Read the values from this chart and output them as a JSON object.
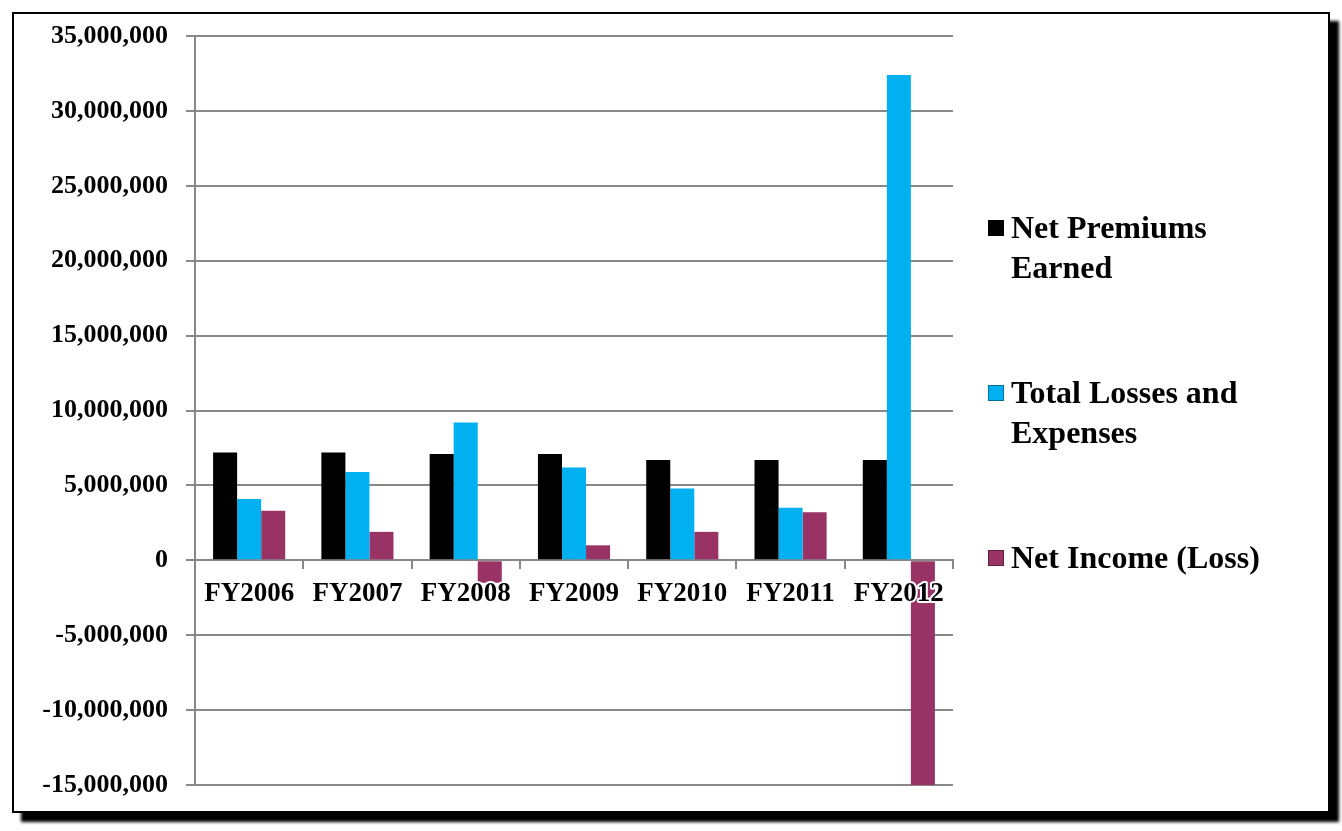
{
  "chart_data": {
    "type": "bar",
    "categories": [
      "FY2006",
      "FY2007",
      "FY2008",
      "FY2009",
      "FY2010",
      "FY2011",
      "FY2012"
    ],
    "series": [
      {
        "name": "Net Premiums Earned",
        "color": "#000000",
        "values": [
          7200000,
          7200000,
          7100000,
          7100000,
          6700000,
          6700000,
          6700000
        ]
      },
      {
        "name": "Total Losses and Expenses",
        "color": "#00b0f0",
        "values": [
          4100000,
          5900000,
          9200000,
          6200000,
          4800000,
          3500000,
          32400000
        ]
      },
      {
        "name": "Net Income (Loss)",
        "color": "#993366",
        "values": [
          3300000,
          1900000,
          -1500000,
          1000000,
          1900000,
          3200000,
          -15000000
        ]
      }
    ],
    "ylim": [
      -15000000,
      35000000
    ],
    "yticks": [
      {
        "value": -15000000,
        "label": "-15,000,000"
      },
      {
        "value": -10000000,
        "label": "-10,000,000"
      },
      {
        "value": -5000000,
        "label": "-5,000,000"
      },
      {
        "value": 0,
        "label": "0"
      },
      {
        "value": 5000000,
        "label": "5,000,000"
      },
      {
        "value": 10000000,
        "label": "10,000,000"
      },
      {
        "value": 15000000,
        "label": "15,000,000"
      },
      {
        "value": 20000000,
        "label": "20,000,000"
      },
      {
        "value": 25000000,
        "label": "25,000,000"
      },
      {
        "value": 30000000,
        "label": "30,000,000"
      },
      {
        "value": 35000000,
        "label": "35,000,000"
      }
    ],
    "grid": "y",
    "legend": "right"
  }
}
